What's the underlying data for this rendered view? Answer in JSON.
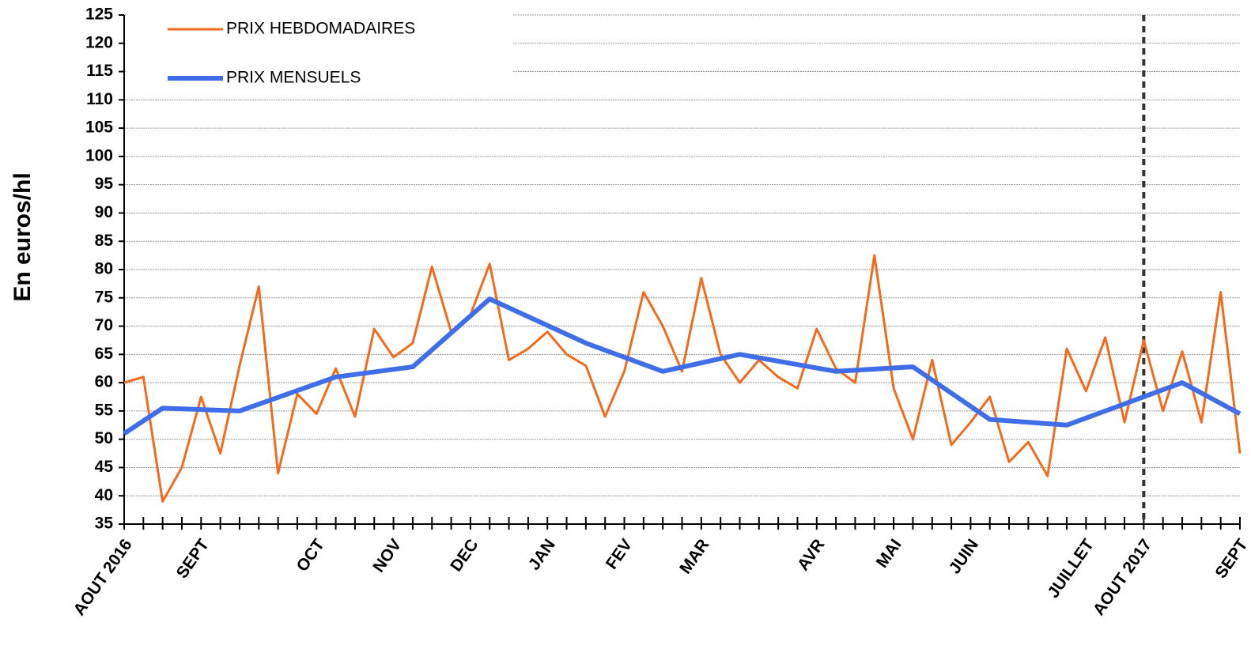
{
  "chart_data": {
    "type": "line",
    "ylabel": "En euros/hl",
    "ylim": [
      35,
      125
    ],
    "yticks": [
      35,
      40,
      45,
      50,
      55,
      60,
      65,
      70,
      75,
      80,
      85,
      90,
      95,
      100,
      105,
      110,
      115,
      120,
      125
    ],
    "xlim": [
      0,
      58
    ],
    "xticks": [
      0,
      1,
      2,
      3,
      4,
      5,
      6,
      7,
      8,
      9,
      10,
      11,
      12,
      13,
      14,
      15,
      16,
      17,
      18,
      19,
      20,
      21,
      22,
      23,
      24,
      25,
      26,
      27,
      28,
      29,
      30,
      31,
      32,
      33,
      34,
      35,
      36,
      37,
      38,
      39,
      40,
      41,
      42,
      43,
      44,
      45,
      46,
      47,
      48,
      49,
      50,
      51,
      52,
      53,
      54,
      55,
      56,
      57,
      58
    ],
    "month_ticks": [
      {
        "value": 0,
        "label": "AOUT 2016"
      },
      {
        "value": 4,
        "label": "SEPT"
      },
      {
        "value": 10,
        "label": "OCT"
      },
      {
        "value": 14,
        "label": "NOV"
      },
      {
        "value": 18,
        "label": "DEC"
      },
      {
        "value": 22,
        "label": "JAN"
      },
      {
        "value": 26,
        "label": "FEV"
      },
      {
        "value": 30,
        "label": "MAR"
      },
      {
        "value": 36,
        "label": "AVR"
      },
      {
        "value": 40,
        "label": "MAI"
      },
      {
        "value": 44,
        "label": "JUIN"
      },
      {
        "value": 50,
        "label": "JUILLET"
      },
      {
        "value": 53,
        "label": "AOUT 2017"
      },
      {
        "value": 58,
        "label": "SEPT"
      }
    ],
    "vline": 53,
    "grid": true,
    "legend": "top-left",
    "series": [
      {
        "name": "PRIX HEBDOMADAIRES",
        "color": "#f26b1d",
        "width": 3,
        "x": [
          0,
          1,
          2,
          3,
          4,
          5,
          6,
          7,
          8,
          9,
          10,
          11,
          12,
          13,
          14,
          15,
          16,
          17,
          18,
          19,
          20,
          21,
          22,
          23,
          24,
          25,
          26,
          27,
          28,
          29,
          30,
          31,
          32,
          33,
          34,
          35,
          36,
          37,
          38,
          39,
          40,
          41,
          42,
          43,
          44,
          45,
          46,
          47,
          48,
          49,
          50,
          51,
          52,
          53,
          54,
          55,
          56,
          57,
          58
        ],
        "values": [
          60,
          61,
          39,
          45,
          57.5,
          47.5,
          63,
          77,
          44,
          58,
          54.5,
          62.5,
          54,
          69.5,
          64.5,
          67,
          80.5,
          69,
          72,
          81,
          64,
          66,
          69,
          65,
          63,
          54,
          62,
          76,
          70,
          62,
          78.5,
          65,
          60,
          64,
          61,
          59,
          69.5,
          62.5,
          60,
          82.5,
          59,
          50,
          64,
          49,
          53,
          57.5,
          46,
          49.5,
          43.5,
          66,
          58.5,
          68,
          53,
          67.5,
          55,
          65.5,
          53,
          76,
          47.5
        ]
      },
      {
        "name": "PRIX MENSUELS",
        "color": "#3f6ee8",
        "width": 6,
        "x": [
          0,
          2,
          6,
          11,
          15,
          19,
          24,
          28,
          32,
          37,
          41,
          45,
          49,
          55,
          58
        ],
        "values": [
          51,
          55.5,
          55,
          61,
          62.8,
          74.8,
          67,
          62,
          65,
          62,
          62.8,
          53.5,
          52.5,
          60,
          54.5
        ]
      }
    ]
  }
}
